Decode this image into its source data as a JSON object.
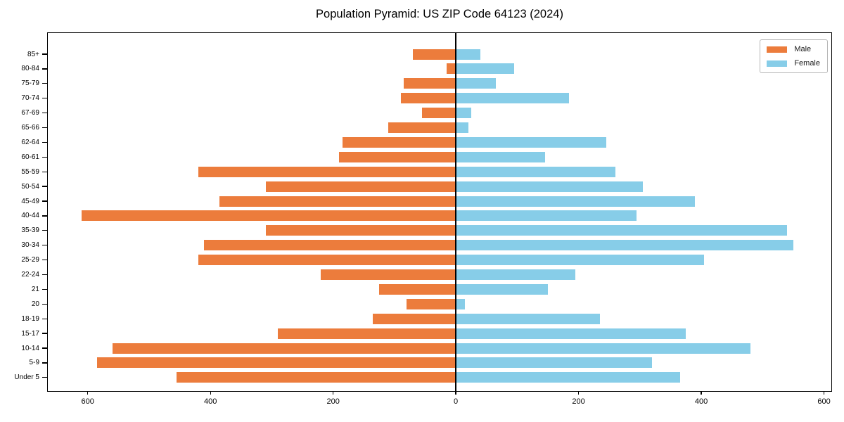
{
  "title": "Population Pyramid: US ZIP Code 64123 (2024)",
  "legend": {
    "position": "upper right",
    "entries": [
      {
        "label": "Male",
        "color": "#EC7C3C"
      },
      {
        "label": "Female",
        "color": "#87CDE8"
      }
    ]
  },
  "chart_data": {
    "type": "bar",
    "variant": "population-pyramid",
    "title": "Population Pyramid: US ZIP Code 64123 (2024)",
    "orientation": "horizontal",
    "grid": false,
    "categories_top_to_bottom": [
      "85+",
      "80-84",
      "75-79",
      "70-74",
      "67-69",
      "65-66",
      "62-64",
      "60-61",
      "55-59",
      "50-54",
      "45-49",
      "40-44",
      "35-39",
      "30-34",
      "25-29",
      "22-24",
      "21",
      "20",
      "18-19",
      "15-17",
      "10-14",
      "5-9",
      "Under 5"
    ],
    "series": [
      {
        "name": "Male",
        "side": "left",
        "color": "#EC7C3C",
        "values": [
          70,
          15,
          85,
          90,
          55,
          110,
          185,
          190,
          420,
          310,
          385,
          610,
          310,
          410,
          420,
          220,
          125,
          80,
          135,
          290,
          560,
          585,
          455
        ]
      },
      {
        "name": "Female",
        "side": "right",
        "color": "#87CDE8",
        "values": [
          40,
          95,
          65,
          185,
          25,
          20,
          245,
          145,
          260,
          305,
          390,
          295,
          540,
          550,
          405,
          195,
          150,
          15,
          235,
          375,
          480,
          320,
          365
        ]
      }
    ],
    "x_axis": {
      "tick_values": [
        -600,
        -400,
        -200,
        0,
        200,
        400,
        600
      ],
      "tick_labels": [
        "600",
        "400",
        "200",
        "0",
        "200",
        "400",
        "600"
      ],
      "xlim": [
        -665,
        612
      ],
      "note": "left side = Male counts, right side = Female counts, zero at center axis line"
    },
    "y_axis": {
      "label_side": "left"
    },
    "axis_color": "#000000",
    "background_color": "#ffffff"
  }
}
